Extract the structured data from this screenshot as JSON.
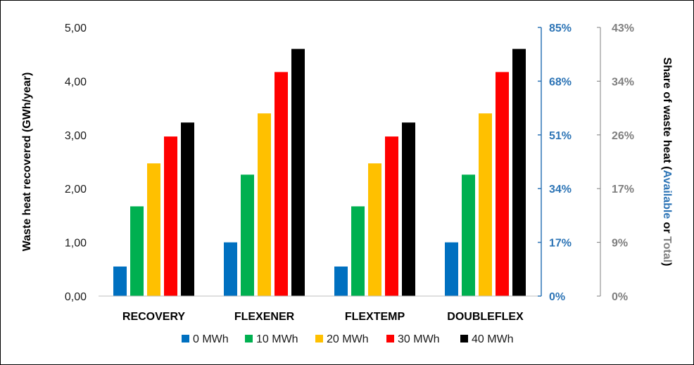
{
  "chart_data": {
    "type": "bar",
    "categories": [
      "RECOVERY",
      "FLEXENER",
      "FLEXTEMP",
      "DOUBLEFLEX"
    ],
    "series": [
      {
        "name": "0 MWh",
        "color": "#0070C0",
        "values": [
          0.55,
          1.0,
          0.55,
          1.0
        ]
      },
      {
        "name": "10 MWh",
        "color": "#00B050",
        "values": [
          1.67,
          2.26,
          1.67,
          2.26
        ]
      },
      {
        "name": "20 MWh",
        "color": "#FFC000",
        "values": [
          2.47,
          3.4,
          2.47,
          3.4
        ]
      },
      {
        "name": "30 MWh",
        "color": "#FF0000",
        "values": [
          2.97,
          4.17,
          2.97,
          4.17
        ]
      },
      {
        "name": "40 MWh",
        "color": "#000000",
        "values": [
          3.23,
          4.6,
          3.23,
          4.6
        ]
      }
    ],
    "ylim": [
      0,
      5
    ],
    "y_ticks": [
      "0,00",
      "1,00",
      "2,00",
      "3,00",
      "4,00",
      "5,00"
    ],
    "y2_ticks": [
      "0%",
      "17%",
      "34%",
      "51%",
      "68%",
      "85%"
    ],
    "y3_ticks": [
      "0%",
      "9%",
      "17%",
      "26%",
      "34%",
      "43%"
    ],
    "ylabel": "Waste heat recovered (GWh/year)",
    "y2label_parts": [
      {
        "text": "Share of waste heat (",
        "color": "#000000"
      },
      {
        "text": "Available",
        "color": "#2E75B6"
      },
      {
        "text": " or ",
        "color": "#000000"
      },
      {
        "text": "Total",
        "color": "#7F7F7F"
      },
      {
        "text": ")",
        "color": "#000000"
      }
    ],
    "y2_color": "#2E75B6",
    "y3_color": "#7F7F7F",
    "legend_position": "bottom",
    "grid": false
  }
}
